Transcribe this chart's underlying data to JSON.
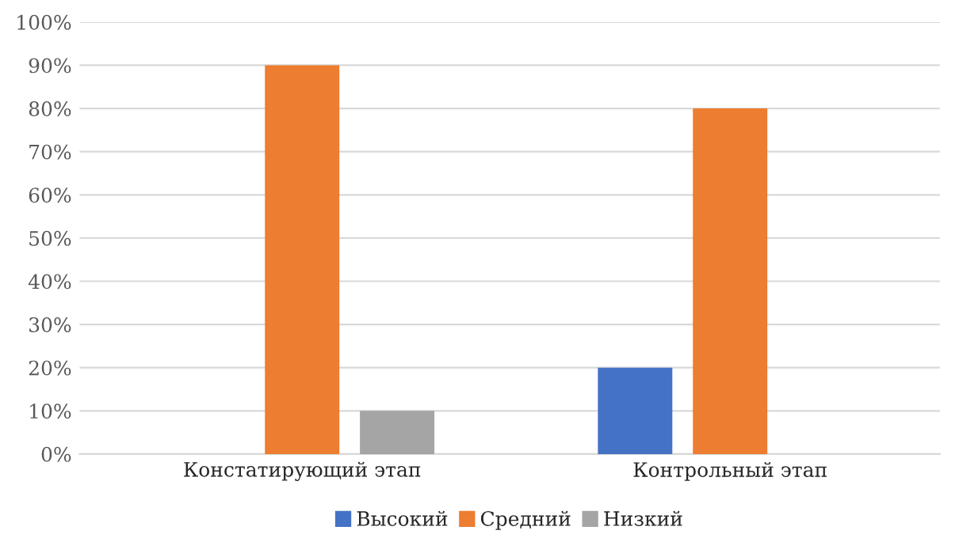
{
  "chart_data": {
    "type": "bar",
    "categories": [
      "Констатирующий этап",
      "Контрольный этап"
    ],
    "series": [
      {
        "name": "Высокий",
        "color": "#4472c4",
        "values": [
          null,
          20
        ]
      },
      {
        "name": "Средний",
        "color": "#ed7d31",
        "values": [
          90,
          80
        ]
      },
      {
        "name": "Низкий",
        "color": "#a5a5a5",
        "values": [
          10,
          null
        ]
      }
    ],
    "ylim": [
      0,
      100
    ],
    "yticks": [
      {
        "value": 0,
        "label": "0%"
      },
      {
        "value": 10,
        "label": "10%"
      },
      {
        "value": 20,
        "label": "20%"
      },
      {
        "value": 30,
        "label": "30%"
      },
      {
        "value": 40,
        "label": "40%"
      },
      {
        "value": 50,
        "label": "50%"
      },
      {
        "value": 60,
        "label": "60%"
      },
      {
        "value": 70,
        "label": "70%"
      },
      {
        "value": 80,
        "label": "80%"
      },
      {
        "value": 90,
        "label": "90%"
      },
      {
        "value": 100,
        "label": "100%"
      }
    ],
    "grid": "y",
    "legend": "bottom"
  }
}
